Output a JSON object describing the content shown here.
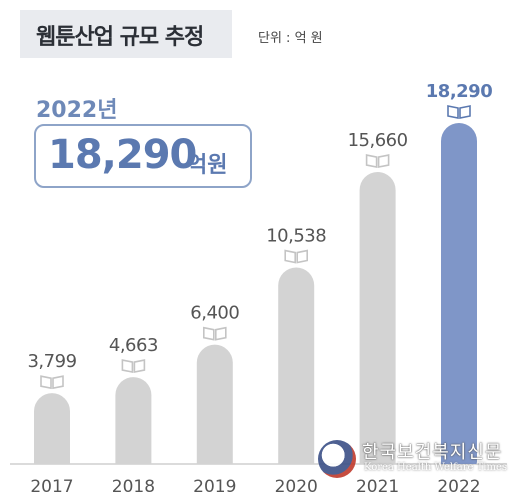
{
  "title": "웹툰산업 규모 추정",
  "unit": "단위 : 억 원",
  "highlight": {
    "year": "2022년",
    "value": "18,290",
    "value_unit": "억원"
  },
  "watermark": {
    "korean": "한국보건복지신문",
    "english": "Korea Health Welfare Times"
  },
  "colors": {
    "bar_default": "#d3d3d3",
    "bar_highlight": "#7f96c8",
    "highlight_text": "#5b79b0",
    "label_text": "#555555"
  },
  "chart_data": {
    "type": "bar",
    "title": "웹툰산업 규모 추정",
    "unit": "단위 : 억 원",
    "categories": [
      "2017",
      "2018",
      "2019",
      "2020",
      "2021",
      "2022"
    ],
    "values": [
      3799,
      4663,
      6400,
      10538,
      15660,
      18290
    ],
    "value_labels": [
      "3,799",
      "4,663",
      "6,400",
      "10,538",
      "15,660",
      "18,290"
    ],
    "highlight_index": 5,
    "bar_icon": "book-icon",
    "grid": false
  }
}
